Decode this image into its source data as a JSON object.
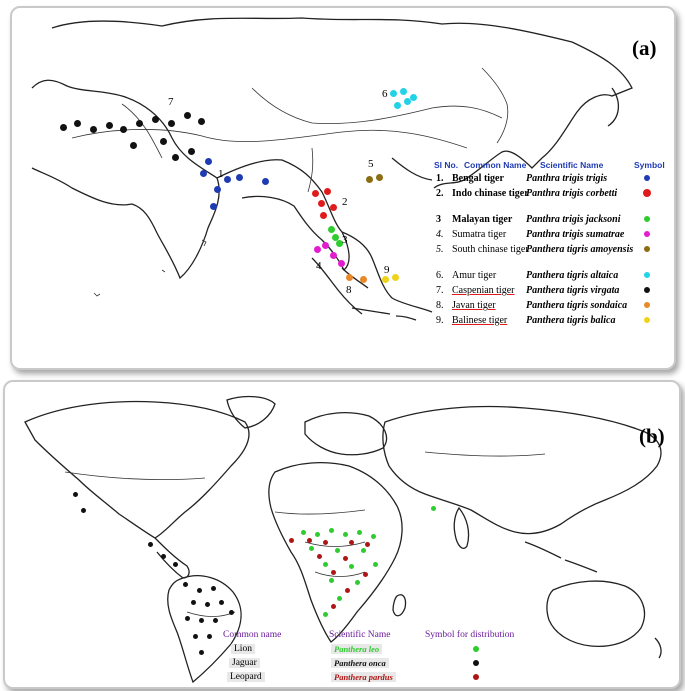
{
  "panel_a": {
    "label": "(a)",
    "legend": {
      "headers": {
        "no": "Sl No.",
        "common": "Common Name",
        "scientific": "Scientific Name",
        "symbol": "Symbol"
      },
      "rows": [
        {
          "no": "1.",
          "common": "Bengal tiger",
          "scientific": "Panthra trigis trigis",
          "color": "#1f3bb3"
        },
        {
          "no": "2.",
          "common": "Indo chinase tiger",
          "scientific": "Panthra trigis corbetti",
          "color": "#e11b1b"
        },
        {
          "no": "3",
          "common": "Malayan tiger",
          "scientific": "Panthra trigis jacksoni",
          "color": "#2ecc2e"
        },
        {
          "no": "4.",
          "common": "Sumatra tiger",
          "scientific": "Panthra trigis sumatrae",
          "color": "#e31ccf"
        },
        {
          "no": "5.",
          "common": "South chinase tiger",
          "scientific": "Panthera tigris amoyensis",
          "color": "#8b6d12"
        },
        {
          "no": "6.",
          "common": "Amur tiger",
          "scientific": "Panthera tigris altaica",
          "color": "#22d3e8"
        },
        {
          "no": "7.",
          "common": "Caspenian tiger",
          "scientific": "Panthera tigris virgata",
          "color": "#111111"
        },
        {
          "no": "8.",
          "common": "Javan tiger",
          "scientific": "Panthera tigris sondaica",
          "color": "#e8892a"
        },
        {
          "no": "9.",
          "common": "Balinese tiger",
          "scientific": "Panthera tigris balica",
          "color": "#f0d21a"
        }
      ]
    },
    "map_labels": [
      "1",
      "2",
      "3",
      "4",
      "5",
      "6",
      "7",
      "8",
      "9"
    ]
  },
  "panel_b": {
    "label": "(b)",
    "legend": {
      "headers": {
        "common": "Common name",
        "scientific": "Scientific Name",
        "symbol": "Symbol for distribution"
      },
      "rows": [
        {
          "common": "Lion",
          "scientific": "Panthera leo",
          "color": "#2ecc2e"
        },
        {
          "common": "Jaguar",
          "scientific": "Panthera onca",
          "color": "#111111"
        },
        {
          "common": "Leopard",
          "scientific": "Panthera pardus",
          "color": "#b01515"
        }
      ]
    }
  }
}
